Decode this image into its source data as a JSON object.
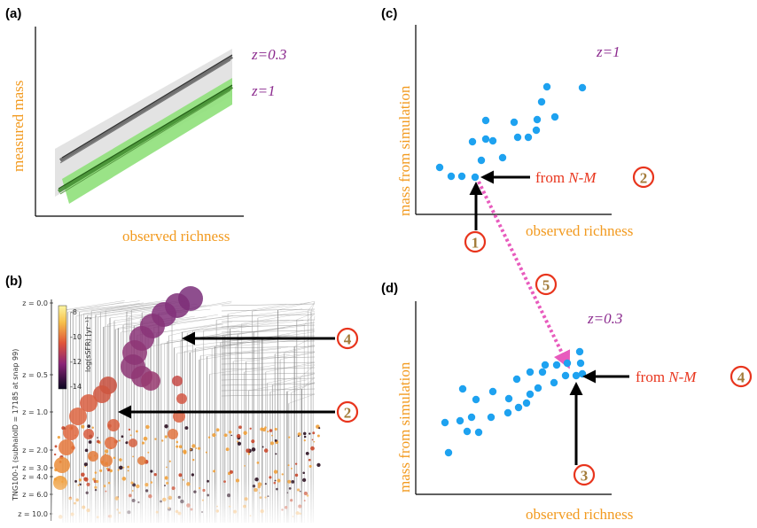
{
  "panels": {
    "a": {
      "label": "(a)",
      "ylabel": "measured mass",
      "xlabel": "observed richness",
      "band_labels": [
        "z=0.3",
        "z=1"
      ],
      "colors": {
        "band_low_z": "#e3e3e3",
        "band_high_z": "#8fe07a",
        "line_low_z": "#444444",
        "line_high_z": "#2a7a1f"
      }
    },
    "b": {
      "label": "(b)",
      "ylabel": "TNG100-1 (subhaloID = 17185 at snap 99)",
      "colorbar_label": "log(sSFR) [yr⁻¹]",
      "colorbar_ticks": [
        "-8",
        "-10",
        "-12",
        "-14"
      ],
      "z_ticks": [
        "z = 0.0",
        "z = 0.5",
        "z = 1.0",
        "z = 2.0",
        "z = 3.0",
        "z = 4.0",
        "z = 6.0",
        "z = 10.0"
      ],
      "markers": [
        "4",
        "2"
      ]
    },
    "c": {
      "label": "(c)",
      "ylabel": "mass from simulation",
      "xlabel": "observed richness",
      "z_label": "z=1",
      "from_label_prefix": "from ",
      "from_label_em": "N-M",
      "markers": [
        "2",
        "1"
      ]
    },
    "d": {
      "label": "(d)",
      "ylabel": "mass from simulation",
      "xlabel": "observed richness",
      "z_label": "z=0.3",
      "from_label_prefix": "from ",
      "from_label_em": "N-M",
      "markers": [
        "4",
        "3"
      ]
    },
    "link_marker": "5"
  },
  "colors": {
    "axis_text": "#f29a1f",
    "z_text": "#8b2a8e",
    "annot_red": "#e8341c",
    "point_blue": "#1ea2f0",
    "link_pink": "#e85bbd",
    "circle_num": "#a37c3a"
  }
}
